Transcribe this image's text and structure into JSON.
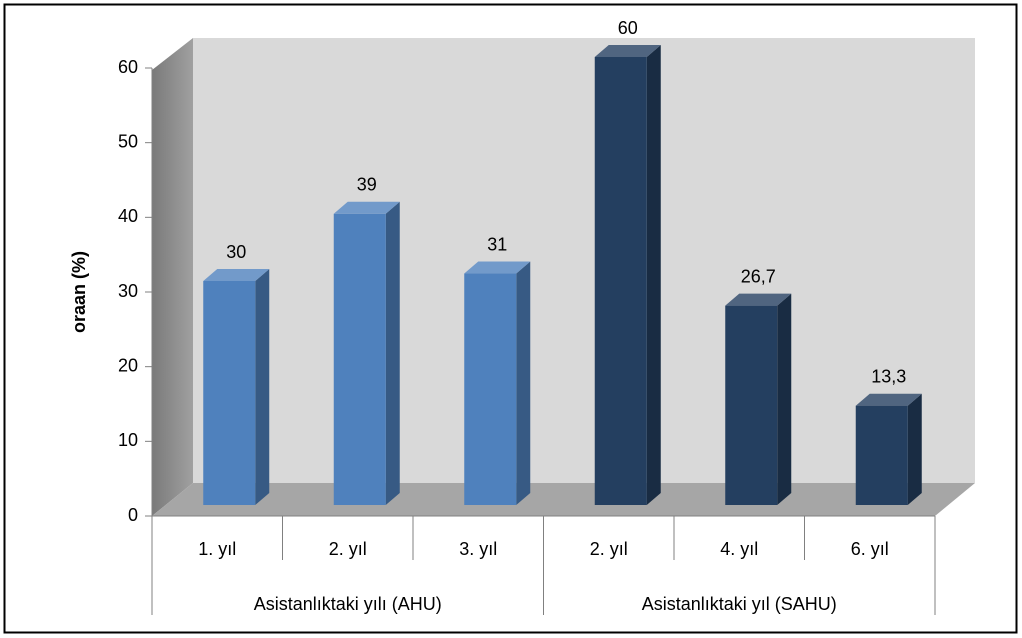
{
  "chart_data": {
    "type": "bar",
    "y_label": "oraan (%)",
    "ylim": [
      0,
      60
    ],
    "yticks": [
      0,
      10,
      20,
      30,
      40,
      50,
      60
    ],
    "grid": false,
    "groups": [
      {
        "label": "Asistanlıktaki yılı (AHU)",
        "color": "#4f81bd",
        "categories": [
          "1. yıl",
          "2. yıl",
          "3. yıl"
        ],
        "values": [
          30,
          39,
          31
        ],
        "value_labels": [
          "30",
          "39",
          "31"
        ]
      },
      {
        "label": "Asistanlıktaki yıl (SAHU)",
        "color": "#243f60",
        "categories": [
          "2. yıl",
          "4. yıl",
          "6. yıl"
        ],
        "values": [
          60,
          26.7,
          13.3
        ],
        "value_labels": [
          "60",
          "26,7",
          "13,3"
        ]
      }
    ]
  }
}
